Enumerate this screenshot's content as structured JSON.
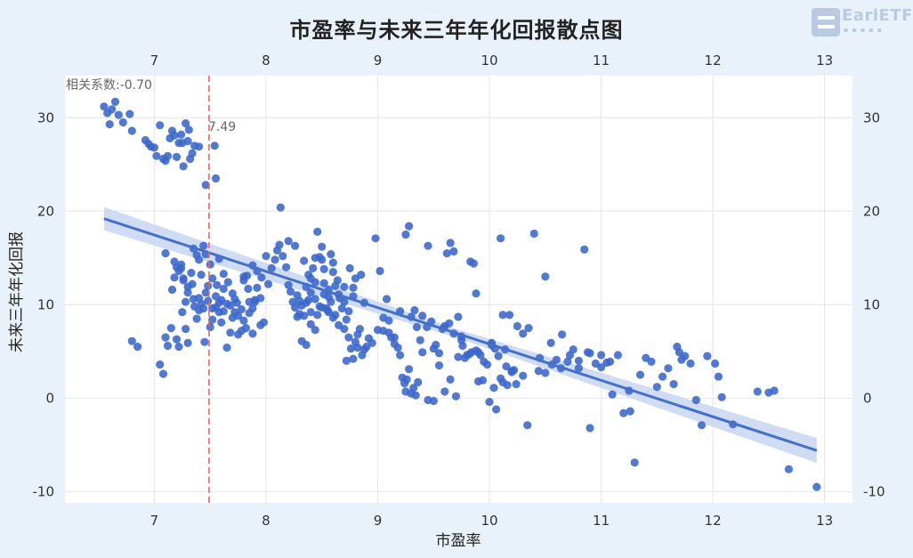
{
  "chart_data": {
    "type": "scatter",
    "title": "市盈率与未来三年年化回报散点图",
    "xlabel": "市盈率",
    "ylabel": "未来三年年化回报",
    "xlim": [
      6.2,
      13.25
    ],
    "ylim": [
      -11.2,
      34.5
    ],
    "xticks": [
      7,
      8,
      9,
      10,
      11,
      12,
      13
    ],
    "yticks": [
      -10,
      0,
      10,
      20,
      30
    ],
    "xtick_labels": [
      "7",
      "8",
      "9",
      "10",
      "11",
      "12",
      "13"
    ],
    "ytick_labels": [
      "-10",
      "0",
      "10",
      "20",
      "30"
    ],
    "grid": true,
    "point_color": "#3a66cc",
    "line_color": "#4470c8",
    "band_color": "#c8d6f2",
    "vline_color": "#e8655b",
    "correlation_label": "相关系数:-0.70",
    "vline": {
      "x": 7.49,
      "label": "7.49"
    },
    "regression": {
      "x1": 6.55,
      "y1": 19.2,
      "x2": 12.93,
      "y2": -5.6
    },
    "points": [
      [
        6.55,
        31.2
      ],
      [
        6.58,
        30.5
      ],
      [
        6.62,
        30.9
      ],
      [
        6.6,
        29.3
      ],
      [
        6.65,
        31.7
      ],
      [
        6.68,
        30.3
      ],
      [
        6.72,
        29.5
      ],
      [
        6.78,
        30.4
      ],
      [
        6.8,
        28.6
      ],
      [
        6.92,
        27.6
      ],
      [
        6.95,
        27.2
      ],
      [
        6.97,
        26.9
      ],
      [
        7.0,
        26.8
      ],
      [
        7.02,
        25.9
      ],
      [
        7.05,
        29.2
      ],
      [
        7.08,
        25.6
      ],
      [
        7.1,
        25.4
      ],
      [
        7.12,
        25.9
      ],
      [
        7.14,
        27.8
      ],
      [
        7.16,
        28.6
      ],
      [
        7.18,
        28.1
      ],
      [
        7.2,
        25.8
      ],
      [
        7.22,
        27.3
      ],
      [
        7.24,
        28.2
      ],
      [
        7.26,
        24.8
      ],
      [
        7.28,
        29.4
      ],
      [
        7.3,
        27.5
      ],
      [
        7.32,
        25.6
      ],
      [
        7.34,
        26.2
      ],
      [
        7.36,
        27.0
      ],
      [
        7.4,
        26.9
      ],
      [
        7.46,
        22.8
      ],
      [
        7.54,
        27.0
      ],
      [
        7.55,
        23.5
      ],
      [
        7.25,
        27.3
      ],
      [
        7.31,
        28.7
      ],
      [
        8.13,
        20.4
      ],
      [
        7.1,
        15.5
      ],
      [
        7.18,
        14.6
      ],
      [
        7.22,
        13.6
      ],
      [
        7.24,
        13.9
      ],
      [
        7.26,
        12.8
      ],
      [
        7.3,
        11.9
      ],
      [
        7.33,
        13.4
      ],
      [
        7.35,
        16.0
      ],
      [
        7.38,
        15.3
      ],
      [
        7.4,
        14.8
      ],
      [
        7.42,
        13.2
      ],
      [
        7.44,
        16.3
      ],
      [
        7.46,
        15.4
      ],
      [
        7.48,
        12.0
      ],
      [
        7.5,
        14.3
      ],
      [
        7.52,
        12.8
      ],
      [
        7.55,
        10.9
      ],
      [
        7.58,
        9.2
      ],
      [
        7.6,
        10.5
      ],
      [
        7.62,
        11.7
      ],
      [
        7.65,
        10.1
      ],
      [
        7.68,
        9.9
      ],
      [
        7.7,
        11.2
      ],
      [
        7.72,
        10.6
      ],
      [
        7.75,
        8.8
      ],
      [
        7.78,
        9.5
      ],
      [
        7.8,
        12.6
      ],
      [
        7.83,
        13.1
      ],
      [
        7.85,
        10.3
      ],
      [
        7.88,
        9.6
      ],
      [
        7.9,
        10.5
      ],
      [
        7.92,
        11.8
      ],
      [
        7.95,
        10.7
      ],
      [
        7.98,
        8.1
      ],
      [
        8.02,
        12.2
      ],
      [
        8.05,
        13.9
      ],
      [
        8.1,
        15.8
      ],
      [
        8.12,
        16.4
      ],
      [
        8.15,
        15.2
      ],
      [
        8.18,
        14.0
      ],
      [
        8.2,
        12.1
      ],
      [
        8.22,
        11.4
      ],
      [
        8.24,
        10.3
      ],
      [
        8.26,
        9.7
      ],
      [
        8.28,
        11.0
      ],
      [
        8.3,
        10.4
      ],
      [
        8.32,
        9.9
      ],
      [
        8.34,
        8.8
      ],
      [
        8.36,
        11.9
      ],
      [
        8.38,
        10.5
      ],
      [
        8.4,
        9.2
      ],
      [
        8.42,
        13.9
      ],
      [
        8.44,
        12.4
      ],
      [
        8.46,
        17.8
      ],
      [
        8.48,
        15.1
      ],
      [
        8.5,
        14.8
      ],
      [
        8.52,
        13.8
      ],
      [
        8.54,
        9.6
      ],
      [
        8.56,
        10.8
      ],
      [
        8.58,
        15.4
      ],
      [
        8.6,
        14.5
      ],
      [
        8.62,
        12.0
      ],
      [
        8.65,
        11.1
      ],
      [
        8.68,
        9.6
      ],
      [
        8.7,
        10.3
      ],
      [
        8.72,
        8.4
      ],
      [
        8.75,
        13.9
      ],
      [
        8.78,
        11.8
      ],
      [
        8.8,
        12.8
      ],
      [
        8.82,
        5.4
      ],
      [
        8.85,
        13.2
      ],
      [
        8.88,
        10.2
      ],
      [
        8.92,
        6.4
      ],
      [
        8.95,
        5.9
      ],
      [
        8.98,
        17.1
      ],
      [
        9.02,
        13.6
      ],
      [
        9.05,
        7.2
      ],
      [
        9.08,
        10.6
      ],
      [
        9.1,
        8.3
      ],
      [
        9.15,
        6.5
      ],
      [
        9.2,
        9.3
      ],
      [
        9.25,
        17.5
      ],
      [
        9.28,
        18.4
      ],
      [
        9.3,
        8.7
      ],
      [
        9.33,
        9.4
      ],
      [
        9.35,
        7.6
      ],
      [
        9.38,
        6.2
      ],
      [
        9.4,
        8.8
      ],
      [
        9.45,
        16.3
      ],
      [
        9.5,
        5.3
      ],
      [
        9.55,
        4.8
      ],
      [
        9.6,
        7.7
      ],
      [
        9.62,
        15.5
      ],
      [
        9.65,
        16.6
      ],
      [
        9.68,
        15.7
      ],
      [
        9.72,
        8.7
      ],
      [
        9.75,
        6.2
      ],
      [
        9.8,
        4.6
      ],
      [
        9.83,
        14.6
      ],
      [
        9.86,
        14.4
      ],
      [
        9.88,
        11.2
      ],
      [
        9.9,
        4.9
      ],
      [
        9.95,
        3.9
      ],
      [
        10.02,
        5.7
      ],
      [
        10.05,
        5.3
      ],
      [
        10.1,
        17.1
      ],
      [
        10.12,
        8.9
      ],
      [
        10.15,
        3.4
      ],
      [
        10.18,
        8.9
      ],
      [
        10.2,
        2.9
      ],
      [
        10.25,
        7.7
      ],
      [
        10.3,
        6.9
      ],
      [
        10.35,
        7.5
      ],
      [
        10.4,
        17.6
      ],
      [
        10.45,
        4.3
      ],
      [
        10.5,
        13.0
      ],
      [
        10.55,
        5.9
      ],
      [
        10.6,
        4.1
      ],
      [
        10.65,
        6.8
      ],
      [
        10.7,
        3.9
      ],
      [
        10.75,
        5.2
      ],
      [
        10.8,
        4.0
      ],
      [
        10.85,
        15.9
      ],
      [
        10.88,
        4.9
      ],
      [
        10.9,
        4.8
      ],
      [
        10.95,
        3.7
      ],
      [
        11.0,
        4.6
      ],
      [
        11.05,
        3.8
      ],
      [
        11.1,
        0.4
      ],
      [
        11.15,
        4.6
      ],
      [
        11.2,
        -1.6
      ],
      [
        11.25,
        0.8
      ],
      [
        11.3,
        -6.9
      ],
      [
        11.35,
        2.5
      ],
      [
        11.4,
        4.3
      ],
      [
        11.45,
        3.9
      ],
      [
        11.5,
        1.2
      ],
      [
        11.55,
        2.3
      ],
      [
        11.6,
        3.2
      ],
      [
        11.65,
        1.5
      ],
      [
        11.68,
        5.5
      ],
      [
        11.7,
        4.9
      ],
      [
        11.72,
        4.1
      ],
      [
        11.75,
        4.5
      ],
      [
        11.8,
        3.7
      ],
      [
        11.85,
        -0.2
      ],
      [
        11.9,
        -2.9
      ],
      [
        11.95,
        4.5
      ],
      [
        12.02,
        3.7
      ],
      [
        12.05,
        2.3
      ],
      [
        12.08,
        0.1
      ],
      [
        12.18,
        -2.8
      ],
      [
        12.4,
        0.7
      ],
      [
        12.5,
        0.6
      ],
      [
        12.55,
        0.8
      ],
      [
        12.68,
        -7.6
      ],
      [
        12.93,
        -9.5
      ],
      [
        6.8,
        6.1
      ],
      [
        6.85,
        5.5
      ],
      [
        7.05,
        3.6
      ],
      [
        7.08,
        2.6
      ],
      [
        7.1,
        6.5
      ],
      [
        7.12,
        5.6
      ],
      [
        7.15,
        7.5
      ],
      [
        7.2,
        6.3
      ],
      [
        7.22,
        5.5
      ],
      [
        7.25,
        9.2
      ],
      [
        7.28,
        7.4
      ],
      [
        7.3,
        5.9
      ],
      [
        7.35,
        10.6
      ],
      [
        7.38,
        8.5
      ],
      [
        7.4,
        9.4
      ],
      [
        7.42,
        10.1
      ],
      [
        7.45,
        6.0
      ],
      [
        7.48,
        10.4
      ],
      [
        7.5,
        7.6
      ],
      [
        7.52,
        8.4
      ],
      [
        7.55,
        9.7
      ],
      [
        7.58,
        10.2
      ],
      [
        7.6,
        8.1
      ],
      [
        7.62,
        9.3
      ],
      [
        7.65,
        5.4
      ],
      [
        7.68,
        7.0
      ],
      [
        7.7,
        8.6
      ],
      [
        7.72,
        9.2
      ],
      [
        7.75,
        6.8
      ],
      [
        7.78,
        7.2
      ],
      [
        7.8,
        8.3
      ],
      [
        7.82,
        7.5
      ],
      [
        7.85,
        9.1
      ],
      [
        7.88,
        6.9
      ],
      [
        7.9,
        10.3
      ],
      [
        7.95,
        7.8
      ],
      [
        8.28,
        8.7
      ],
      [
        8.32,
        6.1
      ],
      [
        8.36,
        5.7
      ],
      [
        8.4,
        7.9
      ],
      [
        8.44,
        7.3
      ],
      [
        8.5,
        9.7
      ],
      [
        8.55,
        9.4
      ],
      [
        8.6,
        8.6
      ],
      [
        8.65,
        7.8
      ],
      [
        8.7,
        7.4
      ],
      [
        8.74,
        6.5
      ],
      [
        8.78,
        4.2
      ],
      [
        8.82,
        6.8
      ],
      [
        8.86,
        4.6
      ],
      [
        8.9,
        5.5
      ],
      [
        9.0,
        7.3
      ],
      [
        9.05,
        8.6
      ],
      [
        9.1,
        7.0
      ],
      [
        9.12,
        6.5
      ],
      [
        9.15,
        5.8
      ],
      [
        9.18,
        5.4
      ],
      [
        9.2,
        4.6
      ],
      [
        9.22,
        2.2
      ],
      [
        9.24,
        1.6
      ],
      [
        9.25,
        0.7
      ],
      [
        9.26,
        2.0
      ],
      [
        9.28,
        3.1
      ],
      [
        9.3,
        0.5
      ],
      [
        9.32,
        1.1
      ],
      [
        9.34,
        0.3
      ],
      [
        9.36,
        1.7
      ],
      [
        9.4,
        4.9
      ],
      [
        9.45,
        -0.2
      ],
      [
        9.5,
        -0.3
      ],
      [
        9.55,
        3.5
      ],
      [
        9.6,
        0.7
      ],
      [
        9.65,
        2.0
      ],
      [
        9.7,
        0.2
      ],
      [
        9.75,
        6.6
      ],
      [
        9.78,
        4.3
      ],
      [
        9.82,
        4.7
      ],
      [
        9.88,
        5.1
      ],
      [
        9.9,
        1.8
      ],
      [
        9.94,
        1.9
      ],
      [
        10.0,
        -0.4
      ],
      [
        10.04,
        1.1
      ],
      [
        10.06,
        -1.2
      ],
      [
        10.1,
        2.1
      ],
      [
        10.12,
        1.7
      ],
      [
        10.16,
        1.4
      ],
      [
        10.2,
        2.8
      ],
      [
        10.24,
        1.5
      ],
      [
        10.3,
        2.4
      ],
      [
        10.34,
        -2.9
      ],
      [
        10.44,
        2.9
      ],
      [
        10.5,
        2.7
      ],
      [
        10.56,
        3.6
      ],
      [
        10.64,
        3.2
      ],
      [
        10.72,
        4.6
      ],
      [
        10.8,
        3.2
      ],
      [
        10.9,
        -3.2
      ],
      [
        11.0,
        3.3
      ],
      [
        11.08,
        3.9
      ],
      [
        11.26,
        -1.4
      ],
      [
        8.36,
        10.2
      ],
      [
        8.4,
        11.3
      ],
      [
        8.44,
        10.6
      ],
      [
        8.48,
        9.8
      ],
      [
        8.52,
        11.1
      ],
      [
        8.56,
        9.2
      ],
      [
        8.58,
        10.3
      ],
      [
        8.62,
        8.9
      ],
      [
        8.66,
        10.7
      ],
      [
        8.7,
        11.9
      ],
      [
        8.74,
        9.3
      ],
      [
        8.78,
        10.9
      ],
      [
        8.3,
        9.0
      ],
      [
        8.46,
        8.9
      ],
      [
        8.52,
        12.3
      ],
      [
        8.56,
        11.6
      ],
      [
        8.6,
        13.5
      ],
      [
        8.64,
        12.6
      ],
      [
        8.4,
        12.8
      ],
      [
        8.34,
        14.7
      ],
      [
        8.5,
        16.2
      ],
      [
        8.44,
        15.0
      ],
      [
        8.38,
        13.2
      ],
      [
        8.26,
        16.3
      ],
      [
        8.2,
        16.8
      ],
      [
        8.08,
        14.8
      ],
      [
        8.0,
        15.2
      ],
      [
        7.96,
        12.9
      ],
      [
        7.92,
        13.6
      ],
      [
        7.88,
        14.2
      ],
      [
        7.84,
        11.7
      ],
      [
        7.8,
        13.0
      ],
      [
        7.74,
        10.2
      ],
      [
        7.66,
        12.4
      ],
      [
        7.62,
        13.3
      ],
      [
        7.58,
        14.9
      ],
      [
        7.56,
        12.1
      ],
      [
        7.52,
        9.6
      ],
      [
        7.46,
        11.3
      ],
      [
        7.44,
        9.6
      ],
      [
        7.4,
        10.7
      ],
      [
        7.36,
        9.8
      ],
      [
        7.34,
        12.2
      ],
      [
        7.3,
        11.3
      ],
      [
        7.28,
        10.3
      ],
      [
        7.26,
        12.6
      ],
      [
        7.24,
        14.3
      ],
      [
        7.2,
        14.0
      ],
      [
        7.18,
        12.9
      ],
      [
        7.16,
        11.6
      ],
      [
        8.88,
        5.2
      ],
      [
        8.84,
        7.4
      ],
      [
        8.8,
        6.0
      ],
      [
        8.76,
        5.3
      ],
      [
        8.72,
        4.0
      ],
      [
        9.44,
        7.6
      ],
      [
        9.48,
        8.2
      ],
      [
        9.52,
        5.7
      ],
      [
        9.58,
        7.4
      ],
      [
        9.64,
        8.0
      ],
      [
        9.68,
        6.9
      ],
      [
        9.72,
        4.4
      ],
      [
        9.76,
        5.6
      ],
      [
        9.84,
        4.9
      ],
      [
        9.92,
        4.6
      ],
      [
        9.98,
        3.6
      ],
      [
        10.02,
        5.9
      ],
      [
        10.08,
        4.5
      ],
      [
        10.14,
        5.2
      ],
      [
        10.22,
        3.0
      ]
    ]
  }
}
